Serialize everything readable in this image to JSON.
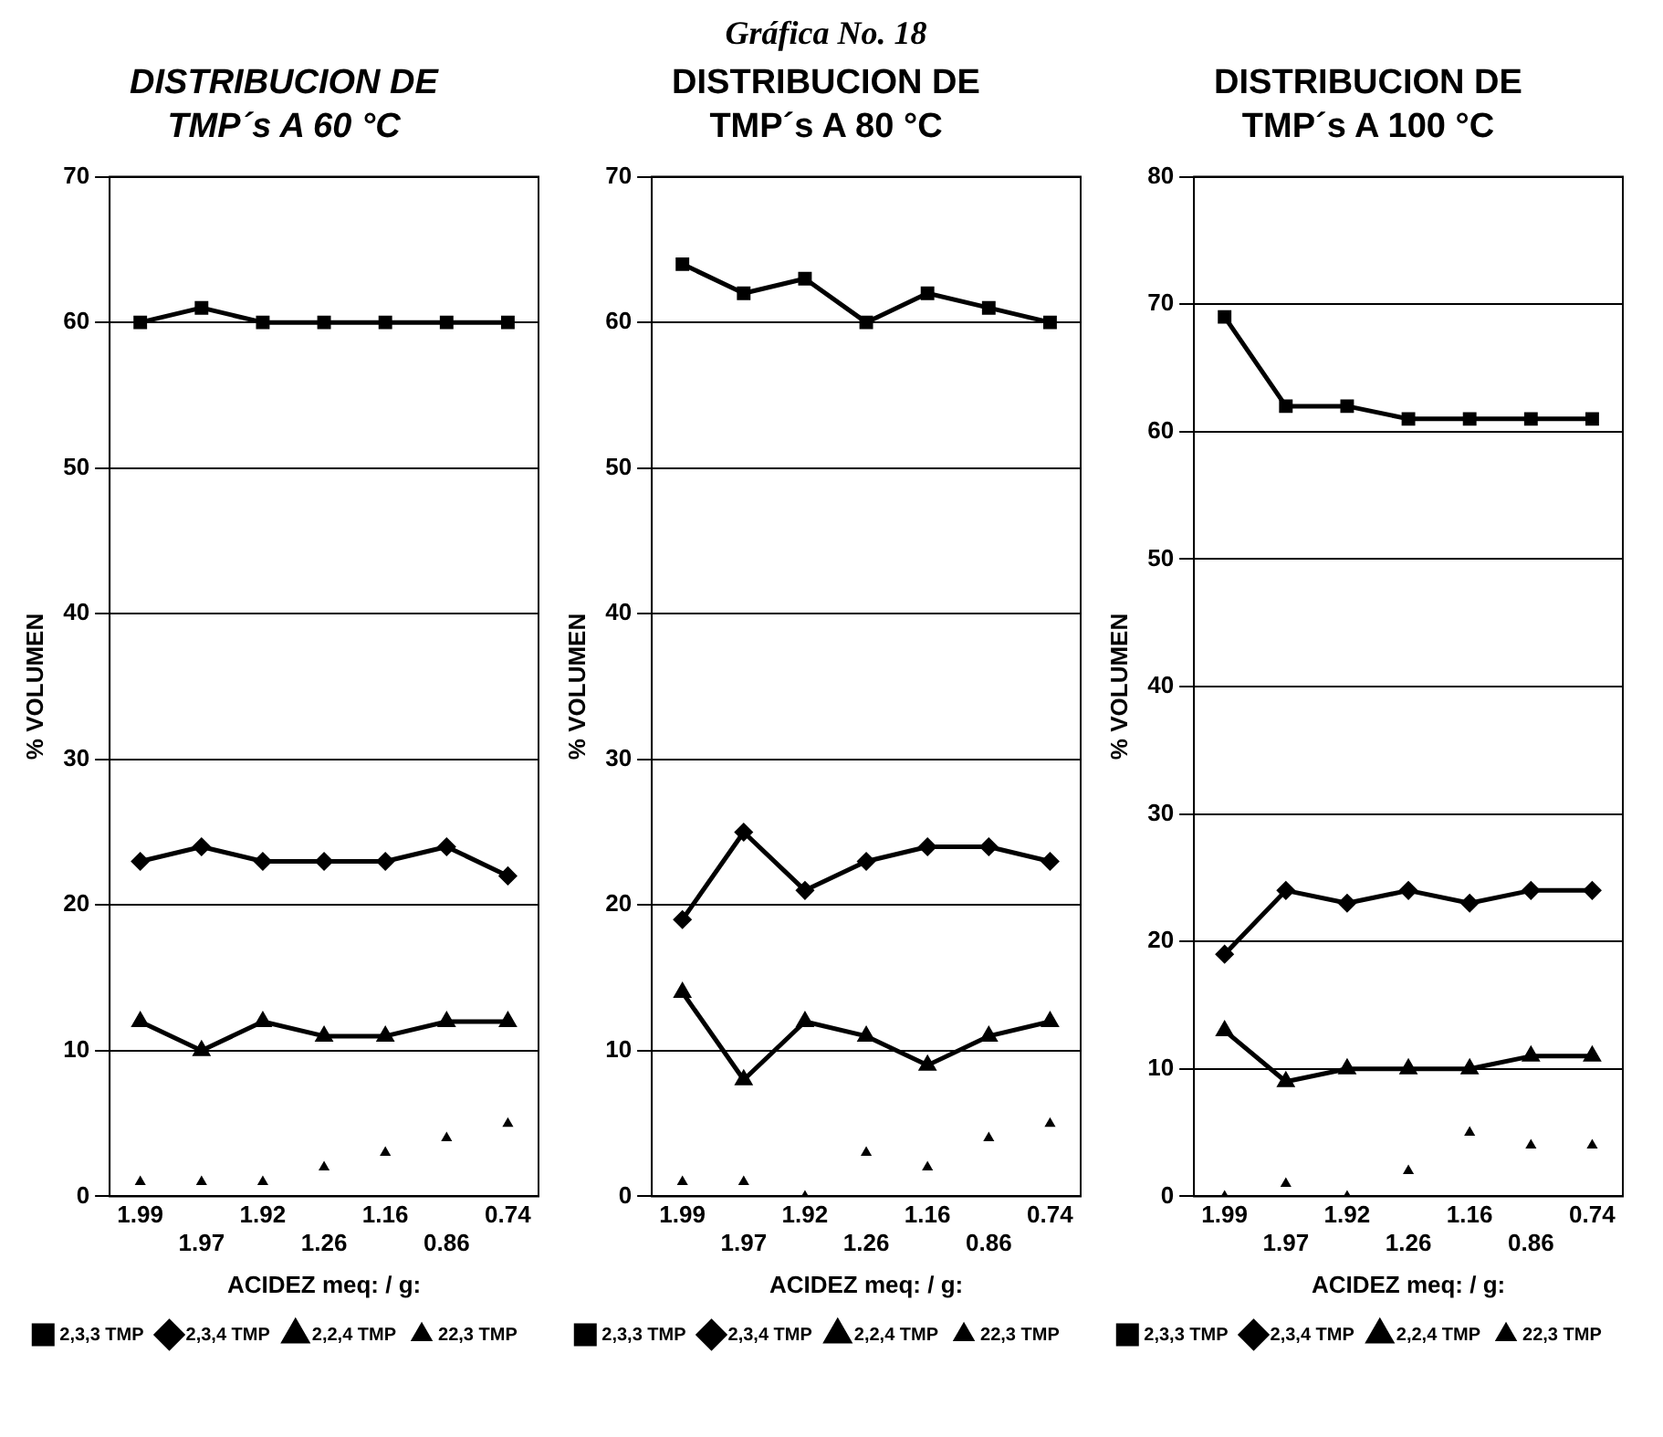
{
  "chart_data": [
    {
      "type": "line",
      "title": "DISTRIBUCION DE TMP´s  A 60 °C",
      "categories": [
        "1.99",
        "1.97",
        "1.92",
        "1.26",
        "1.16",
        "0.86",
        "0.74"
      ],
      "xlabel": "ACIDEZ meq: / g:",
      "ylabel": "% VOLUMEN",
      "ylim": [
        0,
        70
      ],
      "yticks": [
        0,
        10,
        20,
        30,
        40,
        50,
        60,
        70
      ],
      "grid": "y",
      "legend": "bottom",
      "series": [
        {
          "name": "2,3,3 TMP",
          "color": "#000000",
          "marker": "square",
          "values": [
            60,
            61,
            60,
            60,
            60,
            60,
            60
          ]
        },
        {
          "name": "2,3,4 TMP",
          "color": "#000000",
          "marker": "diamond",
          "values": [
            23,
            24,
            23,
            23,
            23,
            24,
            22
          ]
        },
        {
          "name": "2,2,4 TMP",
          "color": "#000000",
          "marker": "triangle",
          "values": [
            12,
            10,
            12,
            11,
            11,
            12,
            12
          ]
        },
        {
          "name": "22,3 TMP",
          "type": "scatter",
          "color": "#000000",
          "marker": "triangle",
          "values": [
            1,
            1,
            1,
            2,
            3,
            4,
            5
          ]
        }
      ]
    },
    {
      "type": "line",
      "title": "DISTRIBUCION DE TMP´s  A 80 °C",
      "annotations": [
        "Gráfica No. 18"
      ],
      "categories": [
        "1.99",
        "1.97",
        "1.92",
        "1.26",
        "1.16",
        "0.86",
        "0.74"
      ],
      "xlabel": "ACIDEZ meq: / g:",
      "ylabel": "% VOLUMEN",
      "ylim": [
        0,
        70
      ],
      "yticks": [
        0,
        10,
        20,
        30,
        40,
        50,
        60,
        70
      ],
      "grid": "y",
      "legend": "bottom",
      "series": [
        {
          "name": "2,3,3 TMP",
          "color": "#000000",
          "marker": "square",
          "values": [
            64,
            62,
            63,
            60,
            62,
            61,
            60
          ]
        },
        {
          "name": "2,3,4 TMP",
          "color": "#000000",
          "marker": "diamond",
          "values": [
            19,
            25,
            21,
            23,
            24,
            24,
            23
          ]
        },
        {
          "name": "2,2,4 TMP",
          "color": "#000000",
          "marker": "triangle",
          "values": [
            14,
            8,
            12,
            11,
            9,
            11,
            12
          ]
        },
        {
          "name": "22,3 TMP",
          "type": "scatter",
          "color": "#000000",
          "marker": "triangle",
          "values": [
            1,
            1,
            0,
            3,
            2,
            4,
            5
          ]
        }
      ]
    },
    {
      "type": "line",
      "title": "DISTRIBUCION DE TMP´s  A 100 °C",
      "categories": [
        "1.99",
        "1.97",
        "1.92",
        "1.26",
        "1.16",
        "0.86",
        "0.74"
      ],
      "xlabel": "ACIDEZ meq: / g:",
      "ylabel": "% VOLUMEN",
      "ylim": [
        0,
        80
      ],
      "yticks": [
        0,
        10,
        20,
        30,
        40,
        50,
        60,
        70,
        80
      ],
      "grid": "y",
      "legend": "bottom",
      "series": [
        {
          "name": "2,3,3 TMP",
          "color": "#000000",
          "marker": "square",
          "values": [
            69,
            62,
            62,
            61,
            61,
            61,
            61
          ]
        },
        {
          "name": "2,3,4 TMP",
          "color": "#000000",
          "marker": "diamond",
          "values": [
            19,
            24,
            23,
            24,
            23,
            24,
            24
          ]
        },
        {
          "name": "2,2,4 TMP",
          "color": "#000000",
          "marker": "triangle",
          "values": [
            13,
            9,
            10,
            10,
            10,
            11,
            11
          ]
        },
        {
          "name": "22,3 TMP",
          "type": "scatter",
          "color": "#000000",
          "marker": "triangle",
          "values": [
            0,
            1,
            0,
            2,
            5,
            4,
            4
          ]
        }
      ]
    }
  ]
}
